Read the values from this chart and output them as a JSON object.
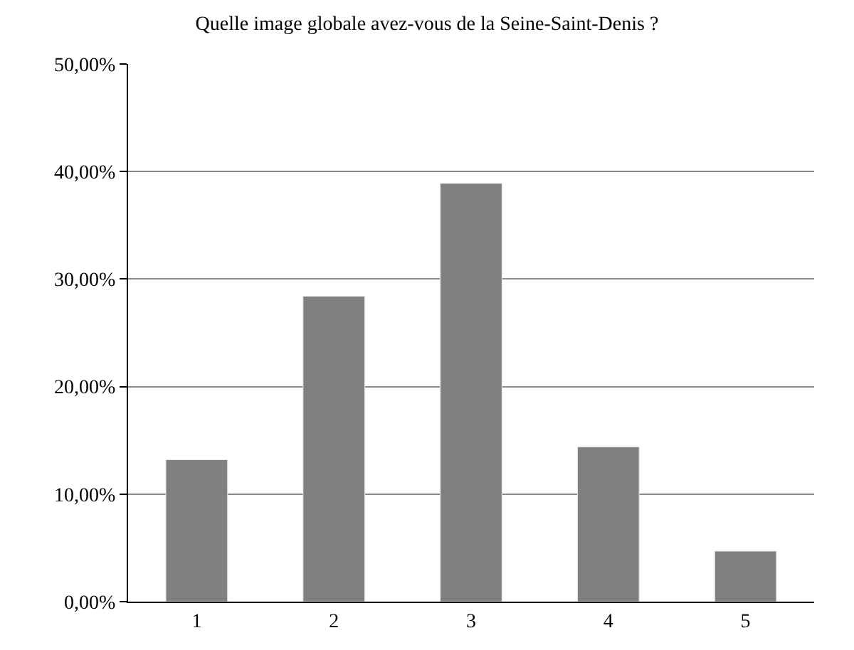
{
  "chart_data": {
    "type": "bar",
    "title": "Quelle image globale avez-vous de la Seine-Saint-Denis ?",
    "categories": [
      "1",
      "2",
      "3",
      "4",
      "5"
    ],
    "values": [
      13.2,
      28.4,
      38.9,
      14.4,
      4.7
    ],
    "color": "#808080",
    "ylim": [
      0,
      50
    ],
    "yticks": [
      {
        "value": 0,
        "label": "0,00%"
      },
      {
        "value": 10,
        "label": "10,00%"
      },
      {
        "value": 20,
        "label": "20,00%"
      },
      {
        "value": 30,
        "label": "30,00%"
      },
      {
        "value": 40,
        "label": "40,00%"
      },
      {
        "value": 50,
        "label": "50,00%"
      }
    ],
    "grid": "y"
  }
}
